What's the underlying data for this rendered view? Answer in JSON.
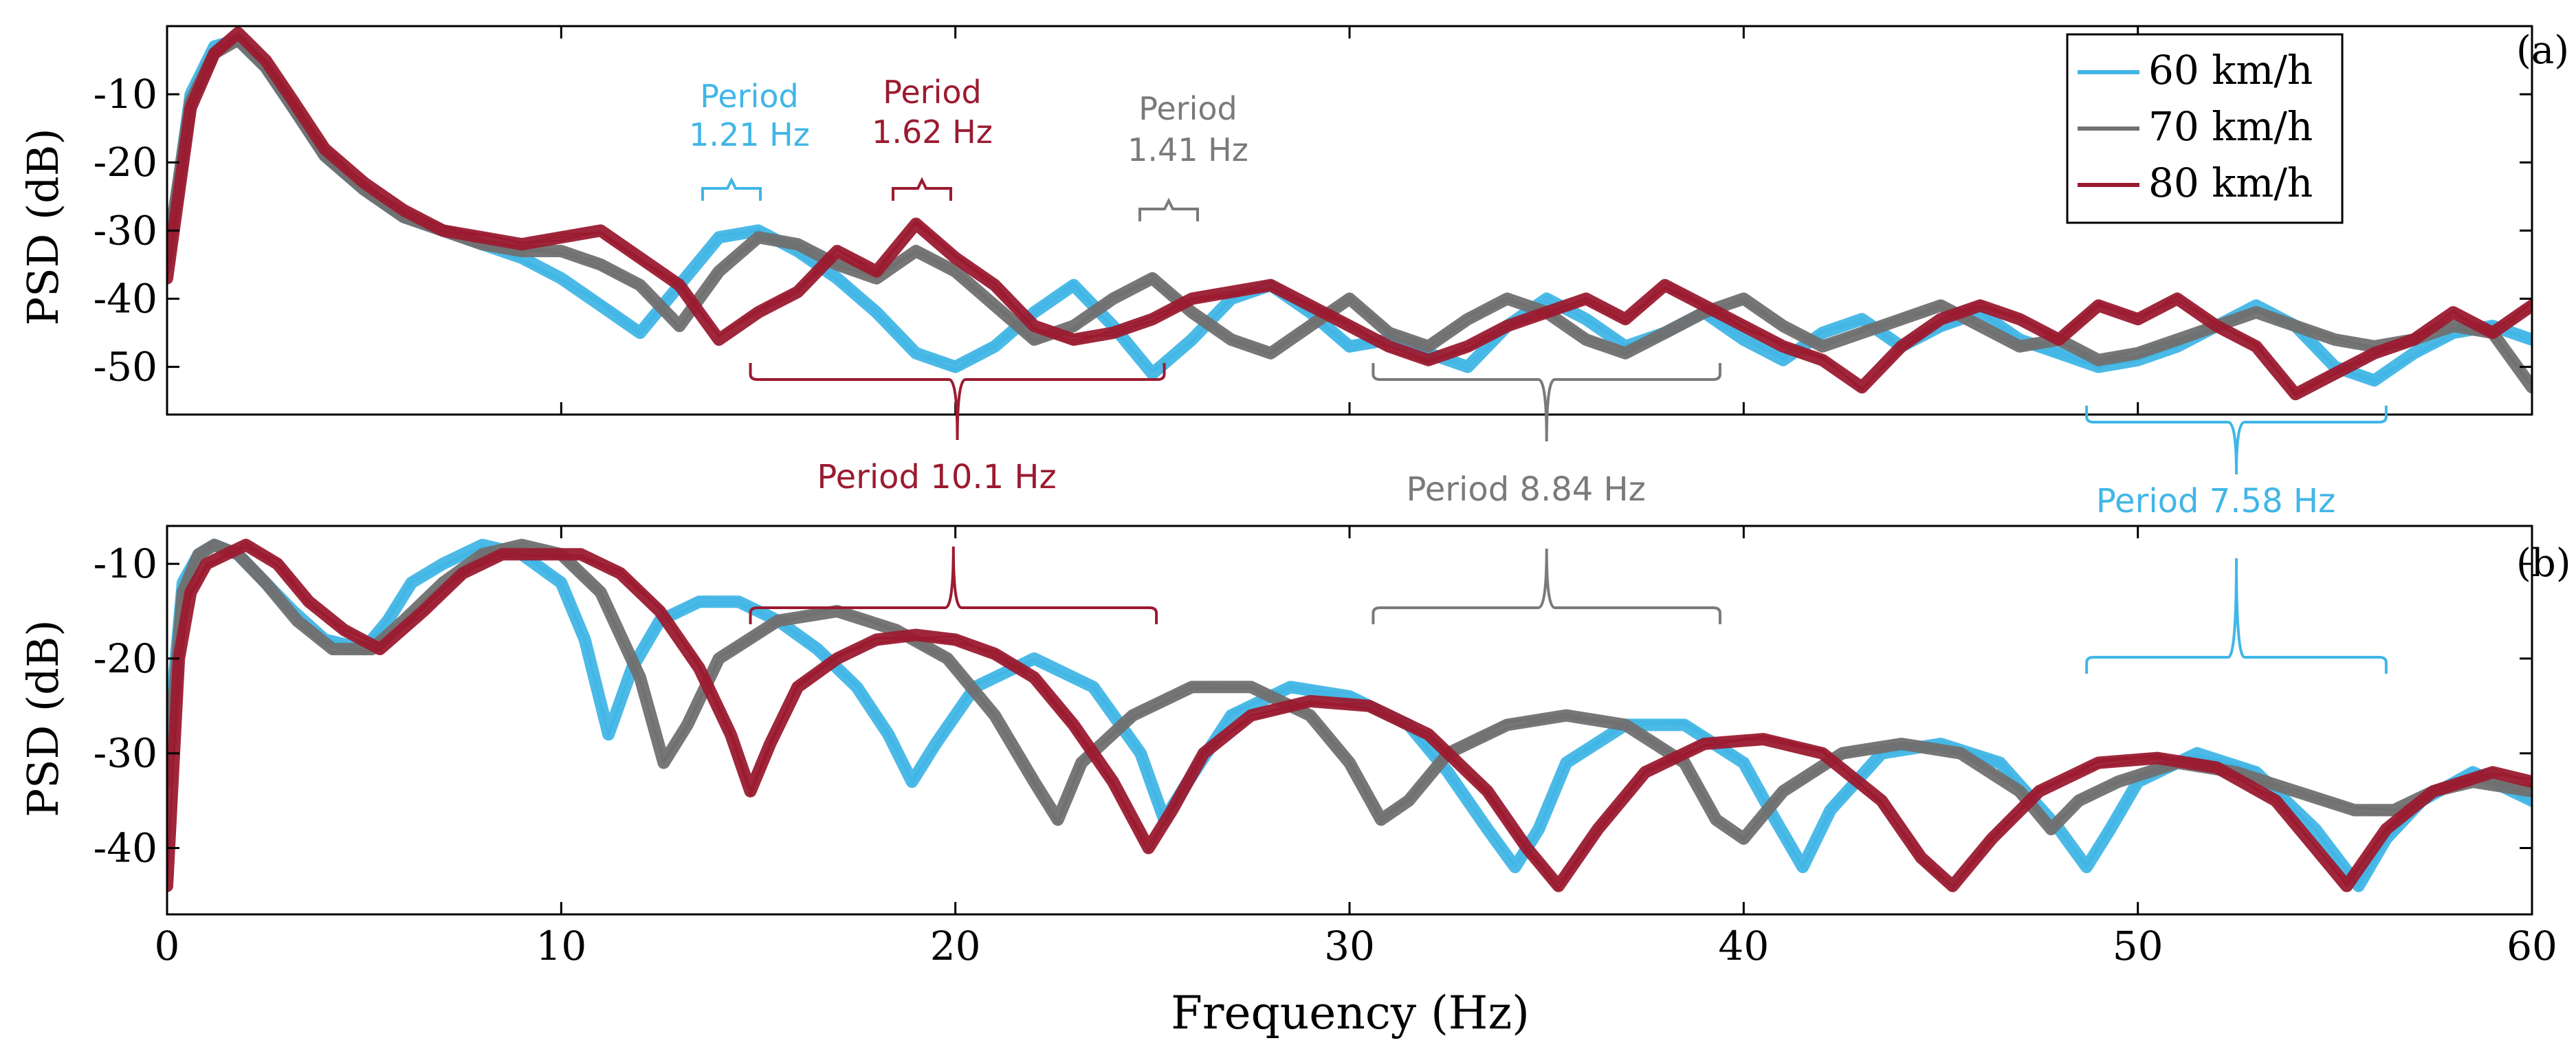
{
  "colors": {
    "s60": "#41b6e6",
    "s70": "#707070",
    "s80": "#9b1b30",
    "axis": "#000000",
    "ann_gray": "#7a7a7a"
  },
  "chart_data": [
    {
      "type": "line",
      "panel_label": "(a)",
      "ylabel": "PSD (dB)",
      "xlim": [
        0,
        60
      ],
      "ylim": [
        -57,
        0
      ],
      "yticks": [
        -10,
        -20,
        -30,
        -40,
        -50
      ],
      "ytick_labels": [
        "-10",
        "-20",
        "-30",
        "-40",
        "-50"
      ],
      "legend": {
        "placement": "top-right",
        "entries": [
          {
            "label": "60 km/h",
            "series": "s60"
          },
          {
            "label": "70 km/h",
            "series": "s70"
          },
          {
            "label": "80 km/h",
            "series": "s80"
          }
        ]
      },
      "series": [
        {
          "name": "60 km/h",
          "key": "s60",
          "fine_period_hz": 1.21,
          "envelope_period_hz": 7.58,
          "x": [
            0,
            0.6,
            1.2,
            1.8,
            2.5,
            3.2,
            4,
            5,
            6,
            7,
            8,
            9,
            10,
            11,
            12,
            13,
            14,
            15,
            16,
            17,
            18,
            19,
            20,
            21,
            22,
            23,
            24,
            25,
            26,
            27,
            28,
            29,
            30,
            31,
            32,
            33,
            34,
            35,
            36,
            37,
            38,
            39,
            40,
            41,
            42,
            43,
            44,
            45,
            46,
            47,
            48,
            49,
            50,
            51,
            52,
            53,
            54,
            55,
            56,
            57,
            58,
            59,
            60
          ],
          "y": [
            -35,
            -10,
            -3,
            -2,
            -6,
            -12,
            -19,
            -24,
            -28,
            -30,
            -32,
            -34,
            -37,
            -41,
            -45,
            -38,
            -31,
            -30,
            -33,
            -37,
            -42,
            -48,
            -50,
            -47,
            -42,
            -38,
            -44,
            -51,
            -46,
            -40,
            -38,
            -42,
            -47,
            -46,
            -48,
            -50,
            -44,
            -40,
            -43,
            -47,
            -45,
            -42,
            -46,
            -49,
            -45,
            -43,
            -47,
            -44,
            -42,
            -46,
            -48,
            -50,
            -49,
            -47,
            -44,
            -41,
            -44,
            -50,
            -52,
            -48,
            -45,
            -44,
            -46
          ]
        },
        {
          "name": "70 km/h",
          "key": "s70",
          "fine_period_hz": 1.41,
          "envelope_period_hz": 8.84,
          "x": [
            0,
            0.6,
            1.2,
            1.8,
            2.5,
            3.2,
            4,
            5,
            6,
            7,
            8,
            9,
            10,
            11,
            12,
            13,
            14,
            15,
            16,
            17,
            18,
            19,
            20,
            21,
            22,
            23,
            24,
            25,
            26,
            27,
            28,
            29,
            30,
            31,
            32,
            33,
            34,
            35,
            36,
            37,
            38,
            39,
            40,
            41,
            42,
            43,
            44,
            45,
            46,
            47,
            48,
            49,
            50,
            51,
            52,
            53,
            54,
            55,
            56,
            57,
            58,
            59,
            60
          ],
          "y": [
            -34,
            -11,
            -4,
            -2,
            -6,
            -12,
            -19,
            -24,
            -28,
            -30,
            -32,
            -33,
            -33,
            -35,
            -38,
            -44,
            -36,
            -31,
            -32,
            -35,
            -37,
            -33,
            -36,
            -41,
            -46,
            -44,
            -40,
            -37,
            -42,
            -46,
            -48,
            -44,
            -40,
            -45,
            -47,
            -43,
            -40,
            -42,
            -46,
            -48,
            -45,
            -42,
            -40,
            -44,
            -47,
            -45,
            -43,
            -41,
            -44,
            -47,
            -46,
            -49,
            -48,
            -46,
            -44,
            -42,
            -44,
            -46,
            -47,
            -46,
            -44,
            -45,
            -53
          ]
        },
        {
          "name": "80 km/h",
          "key": "s80",
          "fine_period_hz": 1.62,
          "envelope_period_hz": 10.1,
          "x": [
            0,
            0.6,
            1.2,
            1.8,
            2.5,
            3.2,
            4,
            5,
            6,
            7,
            8,
            9,
            10,
            11,
            12,
            13,
            14,
            15,
            16,
            17,
            18,
            19,
            20,
            21,
            22,
            23,
            24,
            25,
            26,
            27,
            28,
            29,
            30,
            31,
            32,
            33,
            34,
            35,
            36,
            37,
            38,
            39,
            40,
            41,
            42,
            43,
            44,
            45,
            46,
            47,
            48,
            49,
            50,
            51,
            52,
            53,
            54,
            55,
            56,
            57,
            58,
            59,
            60
          ],
          "y": [
            -37,
            -12,
            -4,
            -1,
            -5,
            -11,
            -18,
            -23,
            -27,
            -30,
            -31,
            -32,
            -31,
            -30,
            -34,
            -38,
            -46,
            -42,
            -39,
            -33,
            -36,
            -29,
            -34,
            -38,
            -44,
            -46,
            -45,
            -43,
            -40,
            -39,
            -38,
            -41,
            -44,
            -47,
            -49,
            -47,
            -44,
            -42,
            -40,
            -43,
            -38,
            -41,
            -44,
            -47,
            -49,
            -53,
            -47,
            -43,
            -41,
            -43,
            -46,
            -41,
            -43,
            -40,
            -44,
            -47,
            -54,
            -51,
            -48,
            -46,
            -42,
            -45,
            -41
          ]
        }
      ]
    },
    {
      "type": "line",
      "panel_label": "(b)",
      "ylabel": "PSD (dB)",
      "xlabel": "Frequency (Hz)",
      "xlim": [
        0,
        60
      ],
      "xticks": [
        0,
        10,
        20,
        30,
        40,
        50,
        60
      ],
      "xtick_labels": [
        "0",
        "10",
        "20",
        "30",
        "40",
        "50",
        "60"
      ],
      "ylim": [
        -47,
        -6
      ],
      "yticks": [
        -10,
        -20,
        -30,
        -40
      ],
      "ytick_labels": [
        "-10",
        "-20",
        "-30",
        "-40"
      ],
      "series": [
        {
          "name": "60 km/h",
          "key": "s60",
          "envelope_period_hz": 7.58,
          "x": [
            0,
            0.4,
            0.8,
            1.2,
            1.8,
            2.5,
            3.2,
            4,
            5,
            5.6,
            6.2,
            7,
            8,
            9,
            10,
            10.6,
            11.2,
            11.8,
            12.5,
            13.5,
            14.5,
            15.5,
            16.5,
            17.5,
            18.3,
            18.9,
            19.5,
            20.5,
            22,
            23.5,
            24.7,
            25.3,
            25.9,
            27,
            28.5,
            30,
            31.5,
            32.5,
            33.5,
            34.2,
            34.8,
            35.5,
            37,
            38.5,
            40,
            40.8,
            41.5,
            42.2,
            43.5,
            45,
            46.5,
            48,
            48.7,
            49.3,
            50,
            51.5,
            53,
            54.5,
            55.6,
            56.3,
            57.2,
            58.5,
            60
          ],
          "y": [
            -30,
            -12,
            -9,
            -8,
            -9,
            -12,
            -15,
            -18,
            -19,
            -16,
            -12,
            -10,
            -8,
            -9,
            -12,
            -18,
            -28,
            -21,
            -16,
            -14,
            -14,
            -16,
            -19,
            -23,
            -28,
            -33,
            -29,
            -23,
            -20,
            -23,
            -30,
            -37,
            -33,
            -26,
            -23,
            -24,
            -27,
            -32,
            -38,
            -42,
            -38,
            -31,
            -27,
            -27,
            -31,
            -37,
            -42,
            -36,
            -30,
            -29,
            -31,
            -38,
            -42,
            -38,
            -33,
            -30,
            -32,
            -38,
            -44,
            -39,
            -35,
            -32,
            -35
          ]
        },
        {
          "name": "70 km/h",
          "key": "s70",
          "envelope_period_hz": 8.84,
          "x": [
            0,
            0.4,
            0.8,
            1.2,
            1.8,
            2.5,
            3.3,
            4.2,
            5.2,
            6,
            7,
            8,
            9,
            10,
            11,
            12,
            12.6,
            13.2,
            14,
            15.5,
            17,
            18.5,
            19.8,
            21,
            22,
            22.6,
            23.2,
            24.5,
            26,
            27.5,
            29,
            30,
            30.8,
            31.5,
            32.5,
            34,
            35.5,
            37,
            38.5,
            39.3,
            40,
            41,
            42.5,
            44,
            45.5,
            47,
            47.8,
            48.5,
            49.5,
            51,
            52.5,
            54,
            55.5,
            56.5,
            57.5,
            58.5,
            60
          ],
          "y": [
            -33,
            -13,
            -9,
            -8,
            -9,
            -12,
            -16,
            -19,
            -19,
            -16,
            -12,
            -9,
            -8,
            -9,
            -13,
            -22,
            -31,
            -27,
            -20,
            -16,
            -15,
            -17,
            -20,
            -26,
            -33,
            -37,
            -31,
            -26,
            -23,
            -23,
            -26,
            -31,
            -37,
            -35,
            -30,
            -27,
            -26,
            -27,
            -31,
            -37,
            -39,
            -34,
            -30,
            -29,
            -30,
            -34,
            -38,
            -35,
            -33,
            -31,
            -32,
            -34,
            -36,
            -36,
            -34,
            -33,
            -34
          ]
        },
        {
          "name": "80 km/h",
          "key": "s80",
          "envelope_period_hz": 10.1,
          "x": [
            0,
            0.3,
            0.6,
            1,
            1.5,
            2,
            2.8,
            3.6,
            4.5,
            5.4,
            6.5,
            7.5,
            8.5,
            9.5,
            10.5,
            11.5,
            12.5,
            13.5,
            14.3,
            14.8,
            15.3,
            16,
            17,
            18,
            19,
            20,
            21,
            22,
            23,
            24,
            24.9,
            25.5,
            26.3,
            27.5,
            29,
            30.5,
            32,
            33.5,
            34.5,
            35.3,
            36.3,
            37.5,
            39,
            40.5,
            42,
            43.5,
            44.5,
            45.3,
            46.3,
            47.5,
            49,
            50.5,
            52,
            53.5,
            54.5,
            55.3,
            56.3,
            57.5,
            59,
            60
          ],
          "y": [
            -44,
            -20,
            -13,
            -10,
            -9,
            -8,
            -10,
            -14,
            -17,
            -19,
            -15,
            -11,
            -9,
            -9,
            -9,
            -11,
            -15,
            -21,
            -28,
            -34,
            -29,
            -23,
            -20,
            -18,
            -17.5,
            -18,
            -19.5,
            -22,
            -27,
            -33,
            -40,
            -36,
            -30,
            -26,
            -24.5,
            -25,
            -28,
            -34,
            -40,
            -44,
            -38,
            -32,
            -29,
            -28.5,
            -30,
            -35,
            -41,
            -44,
            -39,
            -34,
            -31,
            -30.5,
            -31.5,
            -35,
            -40,
            -44,
            -38,
            -34,
            -32,
            -33
          ]
        }
      ]
    }
  ],
  "annotations": {
    "top_a": [
      {
        "label": "Period",
        "value": "1.21 Hz",
        "series": "s60"
      },
      {
        "label": "Period",
        "value": "1.62 Hz",
        "series": "s80"
      },
      {
        "label": "Period",
        "value": "1.41 Hz",
        "series": "s70"
      }
    ],
    "bottom_a": [
      {
        "label": "Period",
        "value": "10.1 Hz",
        "series": "s80",
        "x_from": 14.8,
        "x_to": 25.3
      },
      {
        "label": "Period",
        "value": "8.84 Hz",
        "series": "s70",
        "x_from": 30.6,
        "x_to": 39.4
      },
      {
        "label": "Period",
        "value": "7.58 Hz",
        "series": "s60",
        "x_from": 48.7,
        "x_to": 56.3
      }
    ],
    "top_b": [
      {
        "series": "s80",
        "x_from": 14.8,
        "x_to": 25.1
      },
      {
        "series": "s70",
        "x_from": 30.6,
        "x_to": 39.4
      },
      {
        "series": "s60",
        "x_from": 48.7,
        "x_to": 56.3
      }
    ]
  }
}
